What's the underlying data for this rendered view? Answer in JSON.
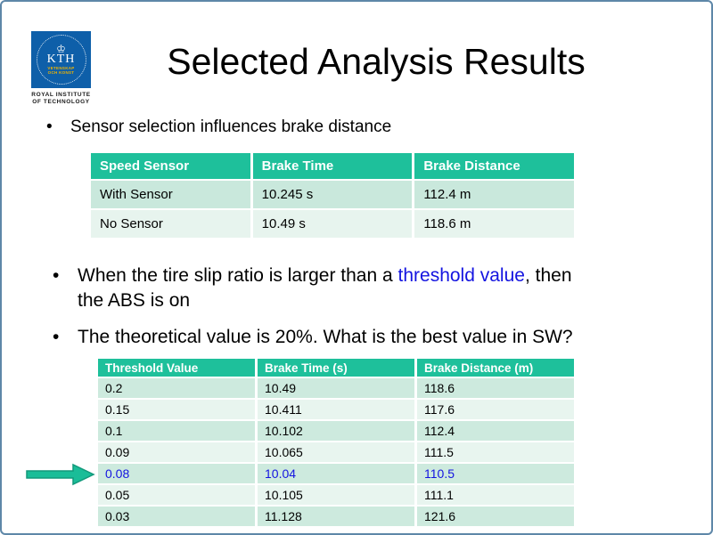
{
  "slide": {
    "title": "Selected Analysis Results"
  },
  "glyphs": {
    "bullet": "•",
    "crown": "♔"
  },
  "logo": {
    "name": "KTH",
    "motto_line1": "VETENSKAP",
    "motto_line2": "OCH KONST",
    "caption_line1": "ROYAL INSTITUTE",
    "caption_line2": "OF TECHNOLOGY"
  },
  "bullets": {
    "b1": "Sensor selection influences brake distance",
    "b2_pre": "When the tire slip ratio is larger than a ",
    "b2_link": "threshold value",
    "b2_post": ", then",
    "b2_line2": "the ABS is on",
    "b3": "The theoretical value is 20%. What is the best value in SW?"
  },
  "table1": {
    "headers": [
      "Speed Sensor",
      "Brake Time",
      "Brake Distance"
    ],
    "rows": [
      [
        "With Sensor",
        "10.245 s",
        "112.4 m"
      ],
      [
        "No Sensor",
        "10.49 s",
        "118.6 m"
      ]
    ]
  },
  "table2": {
    "headers": [
      "Threshold Value",
      "Brake Time (s)",
      "Brake Distance (m)"
    ],
    "rows": [
      [
        "0.2",
        "10.49",
        "118.6"
      ],
      [
        "0.15",
        "10.411",
        "117.6"
      ],
      [
        "0.1",
        "10.102",
        "112.4"
      ],
      [
        "0.09",
        "10.065",
        "111.5"
      ],
      [
        "0.08",
        "10.04",
        "110.5"
      ],
      [
        "0.05",
        "10.105",
        "111.1"
      ],
      [
        "0.03",
        "11.128",
        "121.6"
      ]
    ],
    "highlight_row_index": 4
  },
  "colors": {
    "header_green": "#1EC09B",
    "accent_blue": "#1414E0",
    "logo_blue": "#0E5FA9",
    "slide_border": "#5E87A8",
    "arrow_green": "#1ABD98",
    "row_dark": "#CDEADE",
    "row_light": "#E8F5EF"
  }
}
